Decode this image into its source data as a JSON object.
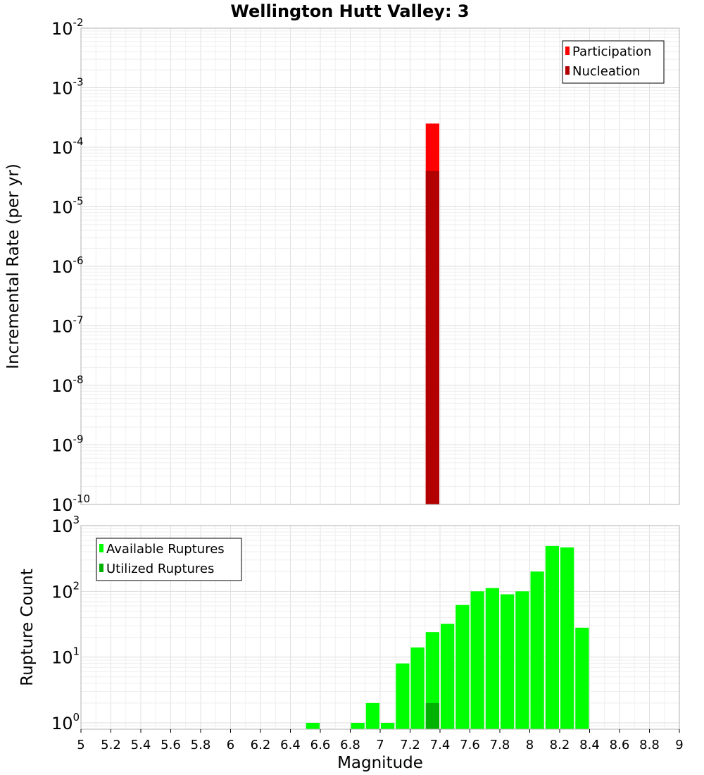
{
  "chart_data": [
    {
      "type": "bar",
      "title": "Wellington Hutt Valley: 3",
      "xlabel": "Magnitude",
      "ylabel": "Incremental Rate (per yr)",
      "xlim": [
        5,
        9
      ],
      "yscale": "log",
      "ylim": [
        1e-10,
        0.01
      ],
      "y_tick_exponents": [
        -10,
        -9,
        -8,
        -7,
        -6,
        -5,
        -4,
        -3,
        -2
      ],
      "legend": {
        "position": "top-right",
        "entries": [
          {
            "label": "Participation",
            "color": "#ff0000"
          },
          {
            "label": "Nucleation",
            "color": "#b20000"
          }
        ]
      },
      "bin_width": 0.1,
      "series": [
        {
          "name": "Participation",
          "color": "#ff0000",
          "x": [
            7.35
          ],
          "values": [
            0.00025
          ]
        },
        {
          "name": "Nucleation",
          "color": "#b20000",
          "x": [
            7.35
          ],
          "values": [
            4e-05
          ]
        }
      ]
    },
    {
      "type": "bar",
      "xlabel": "Magnitude",
      "ylabel": "Rupture Count",
      "xlim": [
        5,
        9
      ],
      "x_ticks": [
        "5",
        "5.2",
        "5.4",
        "5.6",
        "5.8",
        "6",
        "6.2",
        "6.4",
        "6.6",
        "6.8",
        "7",
        "7.2",
        "7.4",
        "7.6",
        "7.8",
        "8",
        "8.2",
        "8.4",
        "8.6",
        "8.8",
        "9"
      ],
      "yscale": "log",
      "ylim": [
        0.8,
        1000
      ],
      "y_tick_exponents": [
        0,
        1,
        2,
        3
      ],
      "legend": {
        "position": "top-left",
        "entries": [
          {
            "label": "Available Ruptures",
            "color": "#00ff00"
          },
          {
            "label": "Utilized Ruptures",
            "color": "#00b200"
          }
        ]
      },
      "bin_width": 0.1,
      "series": [
        {
          "name": "Available Ruptures",
          "color": "#00ff00",
          "x": [
            6.55,
            6.85,
            6.95,
            7.05,
            7.15,
            7.25,
            7.35,
            7.45,
            7.55,
            7.65,
            7.75,
            7.85,
            7.95,
            8.05,
            8.15,
            8.25,
            8.35
          ],
          "values": [
            1,
            1,
            2,
            1,
            8,
            14,
            24,
            32,
            62,
            100,
            112,
            90,
            100,
            200,
            490,
            465,
            28
          ]
        },
        {
          "name": "Utilized Ruptures",
          "color": "#00b200",
          "x": [
            7.35
          ],
          "values": [
            2
          ]
        }
      ]
    }
  ]
}
